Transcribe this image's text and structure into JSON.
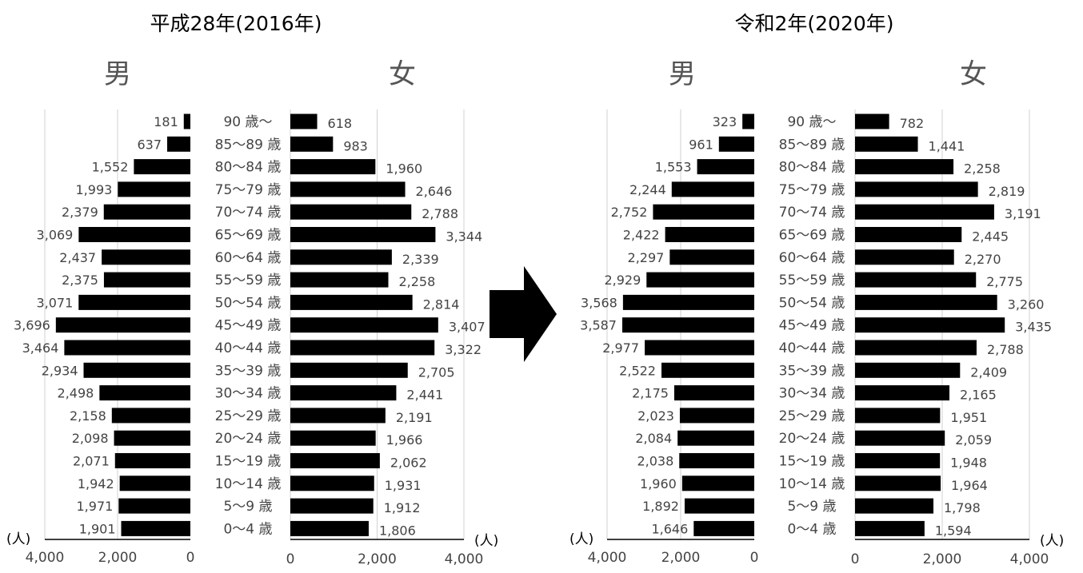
{
  "unit_label": "(人)",
  "sex_labels": {
    "male": "男",
    "female": "女"
  },
  "chart_data": [
    {
      "type": "bar",
      "orientation": "horizontal",
      "title": "平成28年(2016年)",
      "categories": [
        "90 歳〜",
        "85〜89 歳",
        "80〜84 歳",
        "75〜79 歳",
        "70〜74 歳",
        "65〜69 歳",
        "60〜64 歳",
        "55〜59 歳",
        "50〜54 歳",
        "45〜49 歳",
        "40〜44 歳",
        "35〜39 歳",
        "30〜34 歳",
        "25〜29 歳",
        "20〜24 歳",
        "15〜19 歳",
        "10〜14 歳",
        "5〜9 歳",
        "0〜4 歳"
      ],
      "series": [
        {
          "name": "男",
          "values": [
            181,
            637,
            1552,
            1993,
            2379,
            3069,
            2437,
            2375,
            3071,
            3696,
            3464,
            2934,
            2498,
            2158,
            2098,
            2071,
            1942,
            1971,
            1901
          ],
          "labels": [
            "181",
            "637",
            "1,552",
            "1,993",
            "2,379",
            "3,069",
            "2,437",
            "2,375",
            "3,071",
            "3,696",
            "3,464",
            "2,934",
            "2,498",
            "2,158",
            "2,098",
            "2,071",
            "1,942",
            "1,971",
            "1,901"
          ]
        },
        {
          "name": "女",
          "values": [
            618,
            983,
            1960,
            2646,
            2788,
            3344,
            2339,
            2258,
            2814,
            3407,
            3322,
            2705,
            2441,
            2191,
            1966,
            2062,
            1931,
            1912,
            1806
          ],
          "labels": [
            "618",
            "983",
            "1,960",
            "2,646",
            "2,788",
            "3,344",
            "2,339",
            "2,258",
            "2,814",
            "3,407",
            "3,322",
            "2,705",
            "2,441",
            "2,191",
            "1,966",
            "2,062",
            "1,931",
            "1,912",
            "1,806"
          ]
        }
      ],
      "xlim": [
        0,
        4000
      ],
      "ticks_male": [
        "4,000",
        "2,000",
        "0"
      ],
      "ticks_female": [
        "0",
        "2,000",
        "4,000"
      ],
      "grid": true
    },
    {
      "type": "bar",
      "orientation": "horizontal",
      "title": "令和2年(2020年)",
      "categories": [
        "90 歳〜",
        "85〜89 歳",
        "80〜84 歳",
        "75〜79 歳",
        "70〜74 歳",
        "65〜69 歳",
        "60〜64 歳",
        "55〜59 歳",
        "50〜54 歳",
        "45〜49 歳",
        "40〜44 歳",
        "35〜39 歳",
        "30〜34 歳",
        "25〜29 歳",
        "20〜24 歳",
        "15〜19 歳",
        "10〜14 歳",
        "5〜9 歳",
        "0〜4 歳"
      ],
      "series": [
        {
          "name": "男",
          "values": [
            323,
            961,
            1553,
            2244,
            2752,
            2422,
            2297,
            2929,
            3568,
            3587,
            2977,
            2522,
            2175,
            2023,
            2084,
            2038,
            1960,
            1892,
            1646
          ],
          "labels": [
            "323",
            "961",
            "1,553",
            "2,244",
            "2,752",
            "2,422",
            "2,297",
            "2,929",
            "3,568",
            "3,587",
            "2,977",
            "2,522",
            "2,175",
            "2,023",
            "2,084",
            "2,038",
            "1,960",
            "1,892",
            "1,646"
          ]
        },
        {
          "name": "女",
          "values": [
            782,
            1441,
            2258,
            2819,
            3191,
            2445,
            2270,
            2775,
            3260,
            3435,
            2788,
            2409,
            2165,
            1951,
            2059,
            1948,
            1964,
            1798,
            1594
          ],
          "labels": [
            "782",
            "1,441",
            "2,258",
            "2,819",
            "3,191",
            "2,445",
            "2,270",
            "2,775",
            "3,260",
            "3,435",
            "2,788",
            "2,409",
            "2,165",
            "1,951",
            "2,059",
            "1,948",
            "1,964",
            "1,798",
            "1,594"
          ]
        }
      ],
      "xlim": [
        0,
        4000
      ],
      "ticks_male": [
        "4,000",
        "2,000",
        "0"
      ],
      "ticks_female": [
        "0",
        "2,000",
        "4,000"
      ],
      "grid": true
    }
  ]
}
